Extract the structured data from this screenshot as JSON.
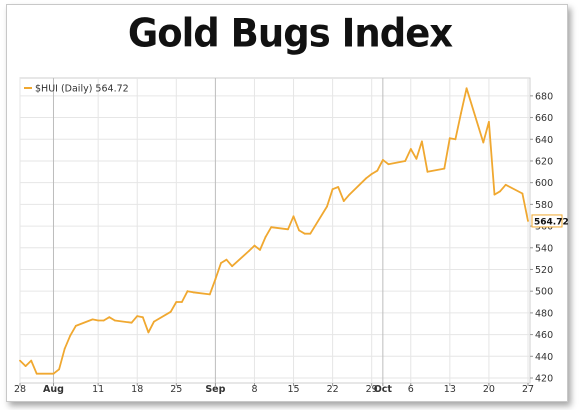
{
  "title": "Gold Bugs Index",
  "chart_data": {
    "type": "line",
    "title": "Gold Bugs Index",
    "legend": "$HUI (Daily) 564.72",
    "legend_position": "top-left",
    "last_value_label": "564.72",
    "line_color": "#f0a830",
    "grid": true,
    "y_axis_side": "right",
    "ylim": [
      420,
      690
    ],
    "yticks": [
      420,
      440,
      460,
      480,
      500,
      520,
      540,
      560,
      580,
      600,
      620,
      640,
      660,
      680
    ],
    "xlim": [
      "2009-07-28",
      "2009-10-27"
    ],
    "xticks": [
      {
        "date": "2009-07-28",
        "label": "28"
      },
      {
        "date": "2009-08-03",
        "label": "Aug",
        "bold": true
      },
      {
        "date": "2009-08-11",
        "label": "11"
      },
      {
        "date": "2009-08-18",
        "label": "18"
      },
      {
        "date": "2009-08-25",
        "label": "25"
      },
      {
        "date": "2009-09-01",
        "label": "Sep",
        "bold": true
      },
      {
        "date": "2009-09-08",
        "label": "8"
      },
      {
        "date": "2009-09-15",
        "label": "15"
      },
      {
        "date": "2009-09-22",
        "label": "22"
      },
      {
        "date": "2009-09-29",
        "label": "29"
      },
      {
        "date": "2009-10-01",
        "label": "Oct",
        "bold": true
      },
      {
        "date": "2009-10-06",
        "label": "6"
      },
      {
        "date": "2009-10-13",
        "label": "13"
      },
      {
        "date": "2009-10-20",
        "label": "20"
      },
      {
        "date": "2009-10-27",
        "label": "27"
      }
    ],
    "series": [
      {
        "name": "$HUI (Daily)",
        "points": [
          [
            "2009-07-28",
            436
          ],
          [
            "2009-07-29",
            431
          ],
          [
            "2009-07-30",
            436
          ],
          [
            "2009-07-31",
            424
          ],
          [
            "2009-08-03",
            424
          ],
          [
            "2009-08-04",
            428
          ],
          [
            "2009-08-05",
            447
          ],
          [
            "2009-08-06",
            459
          ],
          [
            "2009-08-07",
            468
          ],
          [
            "2009-08-10",
            474
          ],
          [
            "2009-08-11",
            473
          ],
          [
            "2009-08-12",
            473
          ],
          [
            "2009-08-13",
            476
          ],
          [
            "2009-08-14",
            473
          ],
          [
            "2009-08-17",
            471
          ],
          [
            "2009-08-18",
            477
          ],
          [
            "2009-08-19",
            476
          ],
          [
            "2009-08-20",
            462
          ],
          [
            "2009-08-21",
            472
          ],
          [
            "2009-08-24",
            481
          ],
          [
            "2009-08-25",
            490
          ],
          [
            "2009-08-26",
            490
          ],
          [
            "2009-08-27",
            500
          ],
          [
            "2009-08-28",
            499
          ],
          [
            "2009-08-31",
            497
          ],
          [
            "2009-09-01",
            511
          ],
          [
            "2009-09-02",
            526
          ],
          [
            "2009-09-03",
            529
          ],
          [
            "2009-09-04",
            523
          ],
          [
            "2009-09-07",
            537
          ],
          [
            "2009-09-08",
            542
          ],
          [
            "2009-09-09",
            538
          ],
          [
            "2009-09-10",
            550
          ],
          [
            "2009-09-11",
            559
          ],
          [
            "2009-09-14",
            557
          ],
          [
            "2009-09-15",
            569
          ],
          [
            "2009-09-16",
            556
          ],
          [
            "2009-09-17",
            553
          ],
          [
            "2009-09-18",
            553
          ],
          [
            "2009-09-21",
            578
          ],
          [
            "2009-09-22",
            594
          ],
          [
            "2009-09-23",
            596
          ],
          [
            "2009-09-24",
            583
          ],
          [
            "2009-09-25",
            589
          ],
          [
            "2009-09-28",
            604
          ],
          [
            "2009-09-29",
            608
          ],
          [
            "2009-09-30",
            611
          ],
          [
            "2009-10-01",
            621
          ],
          [
            "2009-10-02",
            617
          ],
          [
            "2009-10-05",
            620
          ],
          [
            "2009-10-06",
            631
          ],
          [
            "2009-10-07",
            622
          ],
          [
            "2009-10-08",
            638
          ],
          [
            "2009-10-09",
            610
          ],
          [
            "2009-10-12",
            613
          ],
          [
            "2009-10-13",
            641
          ],
          [
            "2009-10-14",
            640
          ],
          [
            "2009-10-15",
            664
          ],
          [
            "2009-10-16",
            687
          ],
          [
            "2009-10-19",
            637
          ],
          [
            "2009-10-20",
            656
          ],
          [
            "2009-10-21",
            589
          ],
          [
            "2009-10-22",
            592
          ],
          [
            "2009-10-23",
            598
          ],
          [
            "2009-10-26",
            590
          ],
          [
            "2009-10-27",
            564.72
          ]
        ]
      }
    ]
  }
}
